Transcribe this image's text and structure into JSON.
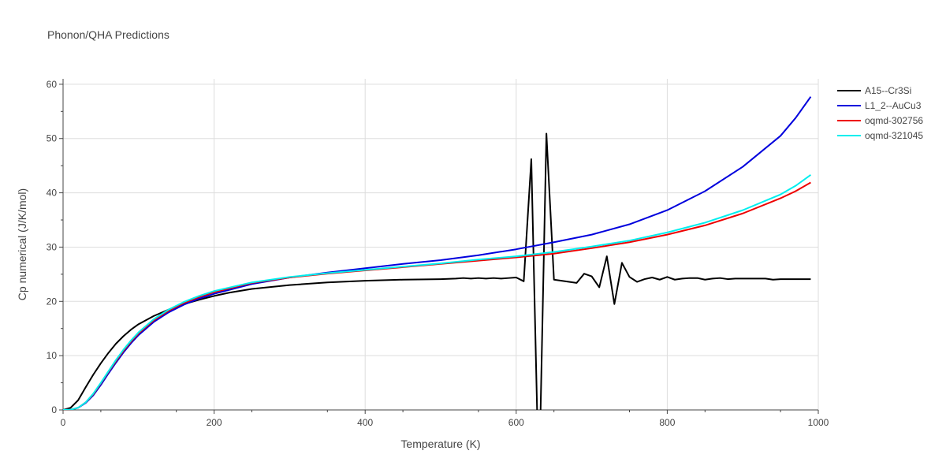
{
  "chart_data": {
    "type": "line",
    "title": "Phonon/QHA Predictions",
    "xlabel": "Temperature (K)",
    "ylabel": "Cp numerical (J/K/mol)",
    "xlim": [
      0,
      1000
    ],
    "ylim": [
      0,
      61
    ],
    "xticks": [
      0,
      200,
      400,
      600,
      800,
      1000
    ],
    "yticks": [
      0,
      10,
      20,
      30,
      40,
      50,
      60
    ],
    "grid": true,
    "legend_position": "top-right",
    "series": [
      {
        "name": "A15--Cr3Si",
        "color": "#000000",
        "points": [
          [
            0,
            0
          ],
          [
            10,
            0.4
          ],
          [
            20,
            1.8
          ],
          [
            30,
            4.2
          ],
          [
            40,
            6.5
          ],
          [
            50,
            8.6
          ],
          [
            60,
            10.5
          ],
          [
            70,
            12.2
          ],
          [
            80,
            13.6
          ],
          [
            90,
            14.8
          ],
          [
            100,
            15.8
          ],
          [
            120,
            17.3
          ],
          [
            140,
            18.5
          ],
          [
            160,
            19.5
          ],
          [
            180,
            20.3
          ],
          [
            200,
            21.0
          ],
          [
            220,
            21.6
          ],
          [
            250,
            22.3
          ],
          [
            300,
            23.0
          ],
          [
            350,
            23.5
          ],
          [
            400,
            23.8
          ],
          [
            450,
            24.0
          ],
          [
            500,
            24.1
          ],
          [
            520,
            24.2
          ],
          [
            530,
            24.3
          ],
          [
            540,
            24.2
          ],
          [
            550,
            24.3
          ],
          [
            560,
            24.2
          ],
          [
            570,
            24.3
          ],
          [
            580,
            24.2
          ],
          [
            590,
            24.3
          ],
          [
            600,
            24.4
          ],
          [
            610,
            23.7
          ],
          [
            620,
            46.2
          ],
          [
            628,
            -2.0
          ],
          [
            632,
            -2.0
          ],
          [
            640,
            50.9
          ],
          [
            650,
            24.0
          ],
          [
            660,
            23.8
          ],
          [
            670,
            23.6
          ],
          [
            680,
            23.4
          ],
          [
            690,
            25.1
          ],
          [
            700,
            24.6
          ],
          [
            710,
            22.6
          ],
          [
            720,
            28.3
          ],
          [
            730,
            19.5
          ],
          [
            740,
            27.1
          ],
          [
            750,
            24.5
          ],
          [
            760,
            23.6
          ],
          [
            770,
            24.1
          ],
          [
            780,
            24.4
          ],
          [
            790,
            24.0
          ],
          [
            800,
            24.5
          ],
          [
            810,
            24.0
          ],
          [
            820,
            24.2
          ],
          [
            830,
            24.3
          ],
          [
            840,
            24.3
          ],
          [
            850,
            24.0
          ],
          [
            860,
            24.2
          ],
          [
            870,
            24.3
          ],
          [
            880,
            24.1
          ],
          [
            890,
            24.2
          ],
          [
            900,
            24.2
          ],
          [
            920,
            24.2
          ],
          [
            930,
            24.2
          ],
          [
            940,
            24.0
          ],
          [
            950,
            24.1
          ],
          [
            970,
            24.1
          ],
          [
            990,
            24.1
          ]
        ]
      },
      {
        "name": "L1_2--AuCu3",
        "color": "#0000dd",
        "points": [
          [
            0,
            0
          ],
          [
            10,
            0.05
          ],
          [
            20,
            0.4
          ],
          [
            30,
            1.3
          ],
          [
            40,
            2.7
          ],
          [
            50,
            4.6
          ],
          [
            60,
            6.7
          ],
          [
            70,
            8.7
          ],
          [
            80,
            10.6
          ],
          [
            90,
            12.3
          ],
          [
            100,
            13.8
          ],
          [
            120,
            16.2
          ],
          [
            140,
            18.0
          ],
          [
            160,
            19.4
          ],
          [
            180,
            20.5
          ],
          [
            200,
            21.4
          ],
          [
            250,
            23.2
          ],
          [
            300,
            24.4
          ],
          [
            350,
            25.3
          ],
          [
            400,
            26.1
          ],
          [
            450,
            26.9
          ],
          [
            500,
            27.6
          ],
          [
            550,
            28.5
          ],
          [
            600,
            29.6
          ],
          [
            650,
            30.9
          ],
          [
            700,
            32.3
          ],
          [
            750,
            34.2
          ],
          [
            800,
            36.8
          ],
          [
            850,
            40.3
          ],
          [
            900,
            44.8
          ],
          [
            950,
            50.5
          ],
          [
            970,
            53.8
          ],
          [
            990,
            57.7
          ]
        ]
      },
      {
        "name": "oqmd-302756",
        "color": "#ee0000",
        "points": [
          [
            0,
            0
          ],
          [
            10,
            0.05
          ],
          [
            20,
            0.4
          ],
          [
            30,
            1.4
          ],
          [
            40,
            2.9
          ],
          [
            50,
            4.9
          ],
          [
            60,
            7.0
          ],
          [
            70,
            9.0
          ],
          [
            80,
            10.9
          ],
          [
            90,
            12.6
          ],
          [
            100,
            14.1
          ],
          [
            120,
            16.5
          ],
          [
            140,
            18.3
          ],
          [
            160,
            19.7
          ],
          [
            180,
            20.8
          ],
          [
            200,
            21.7
          ],
          [
            250,
            23.4
          ],
          [
            300,
            24.4
          ],
          [
            350,
            25.1
          ],
          [
            400,
            25.7
          ],
          [
            450,
            26.3
          ],
          [
            500,
            26.9
          ],
          [
            550,
            27.5
          ],
          [
            600,
            28.1
          ],
          [
            650,
            28.8
          ],
          [
            700,
            29.8
          ],
          [
            750,
            30.9
          ],
          [
            800,
            32.3
          ],
          [
            850,
            34.0
          ],
          [
            900,
            36.2
          ],
          [
            950,
            39.0
          ],
          [
            970,
            40.3
          ],
          [
            990,
            41.9
          ]
        ]
      },
      {
        "name": "oqmd-321045",
        "color": "#00eeee",
        "points": [
          [
            0,
            0
          ],
          [
            10,
            0.05
          ],
          [
            20,
            0.4
          ],
          [
            30,
            1.4
          ],
          [
            40,
            3.0
          ],
          [
            50,
            5.0
          ],
          [
            60,
            7.1
          ],
          [
            70,
            9.2
          ],
          [
            80,
            11.1
          ],
          [
            90,
            12.8
          ],
          [
            100,
            14.3
          ],
          [
            120,
            16.7
          ],
          [
            140,
            18.5
          ],
          [
            160,
            19.9
          ],
          [
            180,
            21.0
          ],
          [
            200,
            21.9
          ],
          [
            250,
            23.5
          ],
          [
            300,
            24.5
          ],
          [
            350,
            25.2
          ],
          [
            400,
            25.8
          ],
          [
            450,
            26.4
          ],
          [
            500,
            27.0
          ],
          [
            550,
            27.7
          ],
          [
            600,
            28.3
          ],
          [
            650,
            29.1
          ],
          [
            700,
            30.1
          ],
          [
            750,
            31.2
          ],
          [
            800,
            32.7
          ],
          [
            850,
            34.5
          ],
          [
            900,
            36.8
          ],
          [
            950,
            39.7
          ],
          [
            970,
            41.3
          ],
          [
            990,
            43.3
          ]
        ]
      }
    ]
  }
}
